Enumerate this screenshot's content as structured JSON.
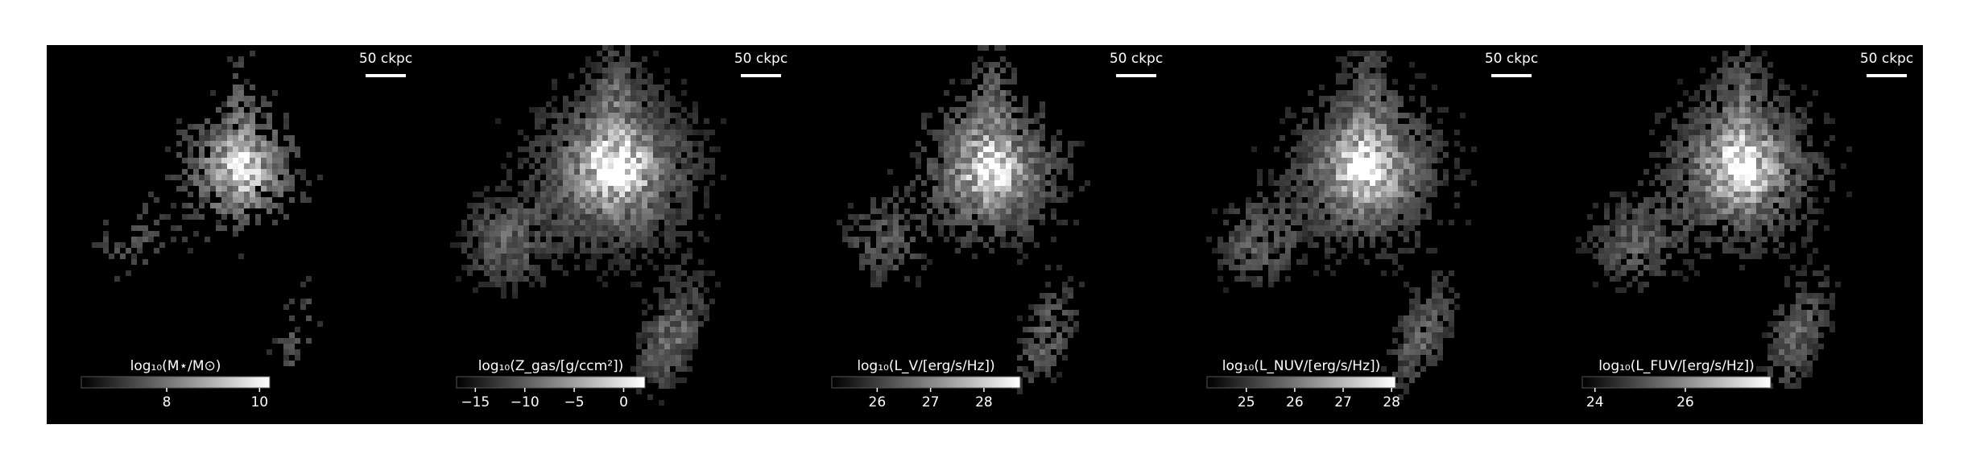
{
  "chart_data": [
    {
      "type": "image",
      "scale_label": "50 ckpc",
      "colorbar_label": "log₁₀(M⋆/M⊙)",
      "clim": [
        6.16,
        10.22
      ],
      "cticks": [
        8,
        10
      ]
    },
    {
      "type": "image",
      "scale_label": "50 ckpc",
      "colorbar_label": "log₁₀(Z_gas/[g/ccm²])",
      "clim": [
        -16.9,
        2.16
      ],
      "cticks": [
        {
          "value": -15,
          "label": "−15"
        },
        {
          "value": -10,
          "label": "−10"
        },
        {
          "value": -5,
          "label": "−5"
        },
        0
      ]
    },
    {
      "type": "image",
      "scale_label": "50 ckpc",
      "colorbar_label": "log₁₀(L_V/[erg/s/Hz])",
      "clim": [
        25.15,
        28.68
      ],
      "cticks": [
        26,
        27,
        28
      ]
    },
    {
      "type": "image",
      "scale_label": "50 ckpc",
      "colorbar_label": "log₁₀(L_NUV/[erg/s/Hz])",
      "clim": [
        24.19,
        28.08
      ],
      "cticks": [
        25,
        26,
        27,
        28
      ]
    },
    {
      "type": "image",
      "scale_label": "50 ckpc",
      "colorbar_label": "log₁₀(L_FUV/[erg/s/Hz])",
      "clim": [
        23.72,
        27.89
      ],
      "cticks": [
        24,
        26
      ]
    }
  ]
}
